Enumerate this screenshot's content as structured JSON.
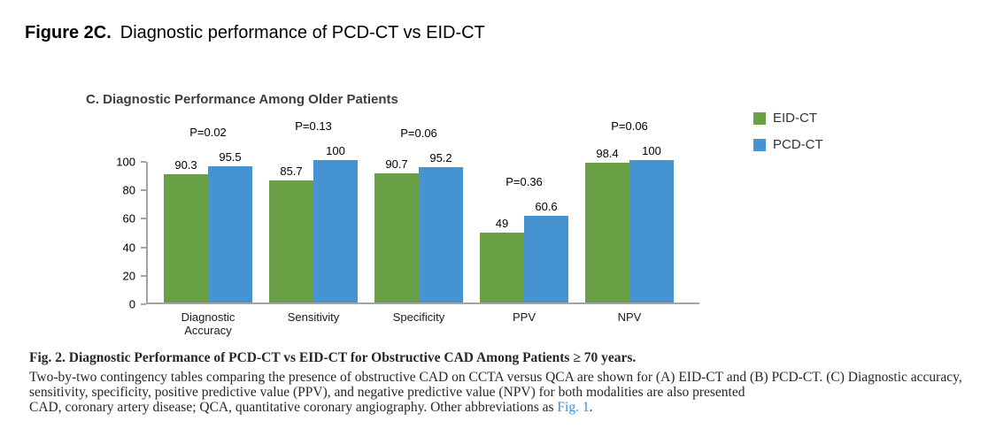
{
  "page": {
    "figure_label": "Figure 2C.",
    "figure_title": "Diagnostic performance of PCD-CT vs EID-CT"
  },
  "chart_data": {
    "type": "bar",
    "title": "C. Diagnostic Performance Among Older Patients",
    "categories": [
      "Diagnostic Accuracy",
      "Sensitivity",
      "Specificity",
      "PPV",
      "NPV"
    ],
    "series": [
      {
        "name": "EID-CT",
        "color": "#69a045",
        "values": [
          90.3,
          85.7,
          90.7,
          49,
          98.4
        ]
      },
      {
        "name": "PCD-CT",
        "color": "#4593d1",
        "values": [
          95.5,
          100,
          95.2,
          60.6,
          100
        ]
      }
    ],
    "p_labels": [
      "P=0.02",
      "P=0.13",
      "P=0.06",
      "P=0.36",
      "P=0.06"
    ],
    "xlabel": "",
    "ylabel": "",
    "ylim": [
      0,
      100
    ],
    "yticks": [
      0,
      20,
      40,
      60,
      80,
      100
    ],
    "grid": false,
    "legend_position": "top-right",
    "axis_color": "#a3a3a3"
  },
  "caption": {
    "line1": "Fig. 2.  Diagnostic Performance of PCD-CT vs EID-CT for Obstructive CAD Among Patients ≥ 70 years.",
    "line2": "Two-by-two contingency tables comparing the presence of obstructive CAD on CCTA versus QCA are shown for (A) EID-CT and (B) PCD-CT. (C) Diagnostic accuracy,",
    "line3": "sensitivity, specificity, positive predictive value (PPV), and negative predictive value (NPV) for both modalities are also presented",
    "line4_prefix": "CAD, coronary artery disease; QCA, quantitative coronary angiography. Other abbreviations as ",
    "line4_link": "Fig. 1",
    "line4_suffix": "."
  }
}
